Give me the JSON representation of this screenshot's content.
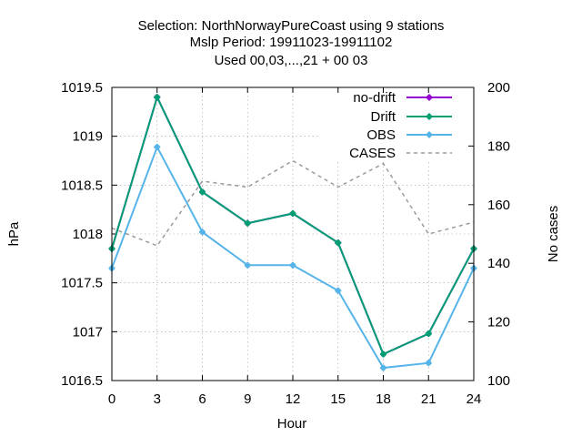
{
  "chart_data": {
    "type": "line",
    "title_lines": [
      "Selection: NorthNorwayPureCoast using     9 stations",
      "Mslp   Period: 19911023-19911102",
      "Used  00,03,...,21  + 00 03"
    ],
    "xlabel": "Hour",
    "ylabel": "hPa",
    "y2label": "No cases",
    "x": [
      0,
      3,
      6,
      9,
      12,
      15,
      18,
      21,
      24
    ],
    "xlim": [
      0,
      24
    ],
    "ylim": [
      1016.5,
      1019.5
    ],
    "y2lim": [
      100,
      200
    ],
    "x_ticks": [
      0,
      3,
      6,
      9,
      12,
      15,
      18,
      21,
      24
    ],
    "y_ticks": [
      1016.5,
      1017,
      1017.5,
      1018,
      1018.5,
      1019,
      1019.5
    ],
    "y_tick_labels": [
      "1016.5",
      "1017",
      "1017.5",
      "1018",
      "1018.5",
      "1019",
      "1019.5"
    ],
    "y2_ticks": [
      100,
      120,
      140,
      160,
      180,
      200
    ],
    "grid": true,
    "legend_position": "top-right",
    "series": [
      {
        "name": "no-drift",
        "axis": "y",
        "color": "#9400d3",
        "style": "solid-marker",
        "values": [
          1017.85,
          1019.4,
          1018.43,
          1018.11,
          1018.21,
          1017.91,
          1016.77,
          1016.98,
          1017.85
        ]
      },
      {
        "name": "Drift",
        "axis": "y",
        "color": "#009e73",
        "style": "solid-marker",
        "values": [
          1017.85,
          1019.4,
          1018.43,
          1018.11,
          1018.21,
          1017.91,
          1016.77,
          1016.98,
          1017.85
        ]
      },
      {
        "name": "OBS",
        "axis": "y",
        "color": "#56b4e9",
        "style": "solid-marker",
        "values": [
          1017.65,
          1018.89,
          1018.02,
          1017.68,
          1017.68,
          1017.42,
          1016.63,
          1016.68,
          1017.65
        ]
      },
      {
        "name": "CASES",
        "axis": "y2",
        "color": "#999999",
        "style": "dashed",
        "values": [
          152,
          146,
          168,
          166,
          175,
          166,
          174,
          150,
          154
        ]
      }
    ]
  }
}
